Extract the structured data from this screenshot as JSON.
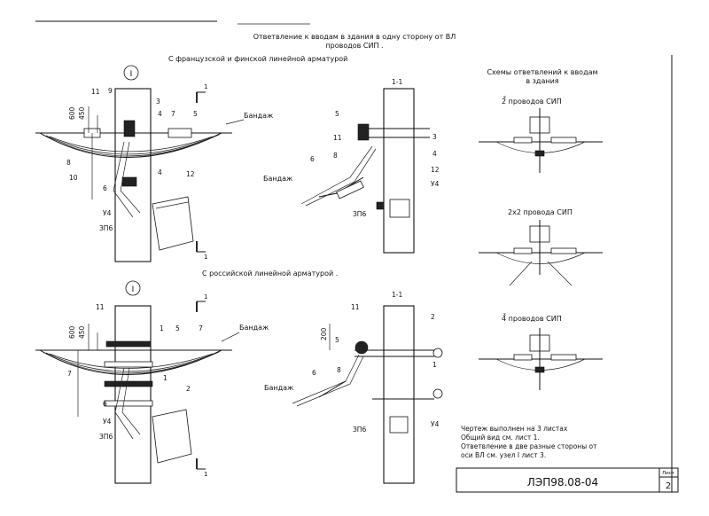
{
  "header": {
    "title_line1": "Ответвление к вводам в здания в одну сторону от ВЛ",
    "title_line2": "проводов СИП ."
  },
  "section_top": {
    "title": "С французской и финской линейной арматурой"
  },
  "section_bottom": {
    "title": "С российской линейной арматурой ."
  },
  "view_marker": "I",
  "section_mark": "1",
  "section_view_label": "1-1",
  "bandage_label": "Бандаж",
  "labels_top_left": [
    "11",
    "9",
    "3",
    "4",
    "7",
    "5",
    "8",
    "10",
    "6",
    "4",
    "12",
    "У4",
    "ЗП6",
    "600",
    "450"
  ],
  "labels_top_right": [
    "5",
    "3",
    "11",
    "8",
    "6",
    "4",
    "12",
    "У4",
    "ЗП6"
  ],
  "labels_bottom_left": [
    "11",
    "5",
    "1",
    "7",
    "7",
    "1",
    "2",
    "6",
    "У4",
    "ЗП6",
    "600",
    "450"
  ],
  "labels_bottom_right": [
    "11",
    "5",
    "2",
    "8",
    "6",
    "1",
    "ЗП6",
    "У4",
    "200"
  ],
  "schemes": {
    "title_line1": "Схемы ответвлений к вводам",
    "title_line2": "в здания",
    "items": [
      {
        "label": "2 проводов СИП",
        "sup": "х"
      },
      {
        "label": "2х2 провода СИП",
        "sup": ""
      },
      {
        "label": "4 проводов СИП",
        "sup": "х"
      }
    ]
  },
  "notes": [
    "Чертеж выполнен на 3  листах",
    "Общий вид см. лист 1.",
    "Ответвление в две разные стороны от",
    "оси ВЛ см. узел I лист 3."
  ],
  "stamp": {
    "code": "ЛЭП98.08-04",
    "sheet_label": "Лист",
    "sheet_number": "2"
  }
}
